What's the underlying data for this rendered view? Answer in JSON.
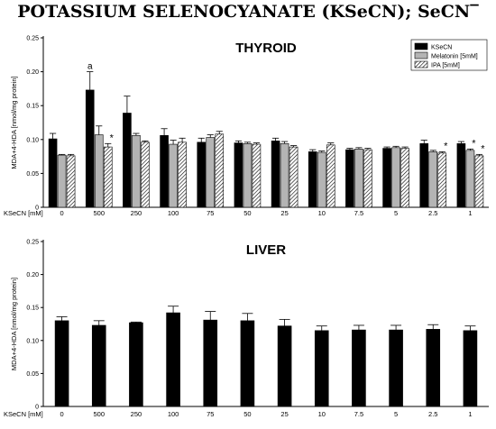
{
  "title": "POTASSIUM SELENOCYANATE (KSeCN); SeCN‾",
  "chart_data": [
    {
      "type": "bar",
      "title": "THYROID",
      "ylabel": "MDA+4-HDA [nmol/mg protein]",
      "xlabel": "KSeCN [mM]",
      "categories": [
        "0",
        "500",
        "250",
        "100",
        "75",
        "50",
        "25",
        "10",
        "7.5",
        "5",
        "2.5",
        "1"
      ],
      "ylim": [
        0,
        0.25
      ],
      "yticks": [
        "0",
        "0.05",
        "0.10",
        "0.15",
        "0.20",
        "0.25"
      ],
      "legend_position": "top-right",
      "series": [
        {
          "name": "KSeCN",
          "fill": "#000000",
          "values": [
            0.101,
            0.173,
            0.139,
            0.106,
            0.096,
            0.095,
            0.098,
            0.082,
            0.085,
            0.087,
            0.094,
            0.094
          ],
          "errors": [
            0.008,
            0.027,
            0.025,
            0.01,
            0.006,
            0.003,
            0.004,
            0.003,
            0.002,
            0.002,
            0.005,
            0.003
          ]
        },
        {
          "name": "Melatonin [5mM]",
          "fill": "#b4b4b4",
          "values": [
            0.077,
            0.107,
            0.106,
            0.093,
            0.103,
            0.094,
            0.094,
            0.081,
            0.086,
            0.088,
            0.082,
            0.084
          ],
          "errors": [
            0.001,
            0.013,
            0.003,
            0.006,
            0.004,
            0.002,
            0.003,
            0.002,
            0.002,
            0.002,
            0.002,
            0.002
          ]
        },
        {
          "name": "IPA [5mM]",
          "fill": "hatch",
          "values": [
            0.076,
            0.089,
            0.096,
            0.096,
            0.108,
            0.093,
            0.089,
            0.092,
            0.085,
            0.087,
            0.08,
            0.076
          ],
          "errors": [
            0.002,
            0.005,
            0.002,
            0.006,
            0.004,
            0.002,
            0.002,
            0.003,
            0.002,
            0.002,
            0.002,
            0.002
          ]
        }
      ],
      "annotations": [
        {
          "category": "500",
          "series": 0,
          "text": "a"
        },
        {
          "category": "500",
          "series": 2,
          "text": "*"
        },
        {
          "category": "2.5",
          "series": 2,
          "text": "*"
        },
        {
          "category": "1",
          "series": 1,
          "text": "*"
        },
        {
          "category": "1",
          "series": 2,
          "text": "*"
        }
      ]
    },
    {
      "type": "bar",
      "title": "LIVER",
      "ylabel": "MDA+4-HDA [nmol/mg protein]",
      "xlabel": "KSeCN [mM]",
      "categories": [
        "0",
        "500",
        "250",
        "100",
        "75",
        "50",
        "25",
        "10",
        "7.5",
        "5",
        "2.5",
        "1"
      ],
      "ylim": [
        0,
        0.25
      ],
      "yticks": [
        "0",
        "0.05",
        "0.10",
        "0.15",
        "0.20",
        "0.25"
      ],
      "series": [
        {
          "fill": "#000000",
          "values": [
            0.13,
            0.123,
            0.127,
            0.142,
            0.131,
            0.13,
            0.122,
            0.115,
            0.116,
            0.116,
            0.117,
            0.115
          ],
          "errors": [
            0.006,
            0.007,
            0.001,
            0.01,
            0.013,
            0.011,
            0.01,
            0.007,
            0.007,
            0.007,
            0.007,
            0.007
          ]
        }
      ]
    }
  ]
}
